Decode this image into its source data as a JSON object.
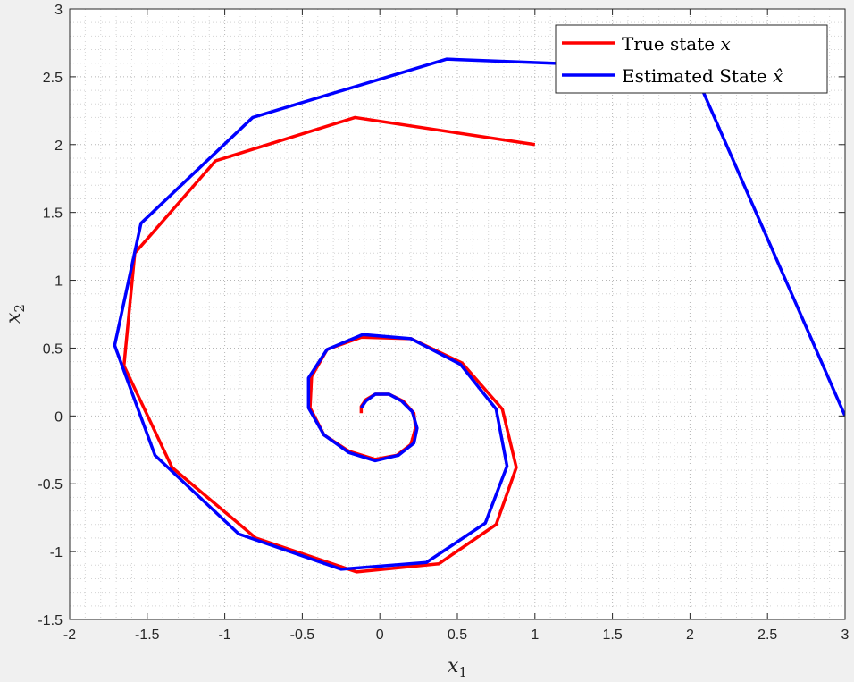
{
  "chart_data": {
    "type": "line",
    "title": "",
    "xlabel": {
      "base": "x",
      "sub": "1"
    },
    "ylabel": {
      "base": "x",
      "sub": "2"
    },
    "xlim": [
      -2,
      3
    ],
    "ylim": [
      -1.5,
      3
    ],
    "xticks": [
      -2,
      -1.5,
      -1,
      -0.5,
      0,
      0.5,
      1,
      1.5,
      2,
      2.5,
      3
    ],
    "yticks": [
      -1.5,
      -1,
      -0.5,
      0,
      0.5,
      1,
      1.5,
      2,
      2.5,
      3
    ],
    "xtick_labels": [
      "-2",
      "-1.5",
      "-1",
      "-0.5",
      "0",
      "0.5",
      "1",
      "1.5",
      "2",
      "2.5",
      "3"
    ],
    "ytick_labels": [
      "-1.5",
      "-1",
      "-0.5",
      "0",
      "0.5",
      "1",
      "1.5",
      "2",
      "2.5",
      "3"
    ],
    "grid": "dotted",
    "legend_position": "top-right",
    "series": [
      {
        "name": "True state",
        "name_symbol": "x",
        "color": "#ff0000",
        "x": [
          1.0,
          -0.16,
          -1.06,
          -1.58,
          -1.65,
          -1.34,
          -0.8,
          -0.15,
          0.38,
          0.75,
          0.88,
          0.79,
          0.53,
          0.2,
          -0.12,
          -0.34,
          -0.44,
          -0.45,
          -0.36,
          -0.2,
          -0.03,
          0.11,
          0.2,
          0.23,
          0.22,
          0.15,
          0.06,
          -0.03,
          -0.09,
          -0.12,
          -0.12
        ],
        "y": [
          2.0,
          2.2,
          1.88,
          1.2,
          0.37,
          -0.38,
          -0.9,
          -1.15,
          -1.09,
          -0.8,
          -0.38,
          0.05,
          0.39,
          0.57,
          0.58,
          0.49,
          0.29,
          0.06,
          -0.14,
          -0.26,
          -0.32,
          -0.29,
          -0.21,
          -0.09,
          0.02,
          0.11,
          0.16,
          0.16,
          0.12,
          0.07,
          0.02
        ]
      },
      {
        "name": "Estimated State",
        "name_symbol": "x̂",
        "color": "#0000ff",
        "x": [
          3.0,
          2.02,
          0.43,
          -0.82,
          -1.54,
          -1.71,
          -1.45,
          -0.91,
          -0.25,
          0.3,
          0.68,
          0.82,
          0.75,
          0.52,
          0.2,
          -0.11,
          -0.34,
          -0.46,
          -0.46,
          -0.36,
          -0.2,
          -0.03,
          0.12,
          0.22,
          0.24,
          0.21,
          0.14,
          0.06,
          -0.03,
          -0.09,
          -0.12
        ],
        "y": [
          0.0,
          2.56,
          2.63,
          2.2,
          1.42,
          0.52,
          -0.29,
          -0.87,
          -1.13,
          -1.08,
          -0.79,
          -0.37,
          0.05,
          0.38,
          0.57,
          0.6,
          0.49,
          0.28,
          0.06,
          -0.14,
          -0.27,
          -0.33,
          -0.29,
          -0.2,
          -0.09,
          0.03,
          0.11,
          0.16,
          0.16,
          0.11,
          0.06
        ]
      }
    ]
  }
}
